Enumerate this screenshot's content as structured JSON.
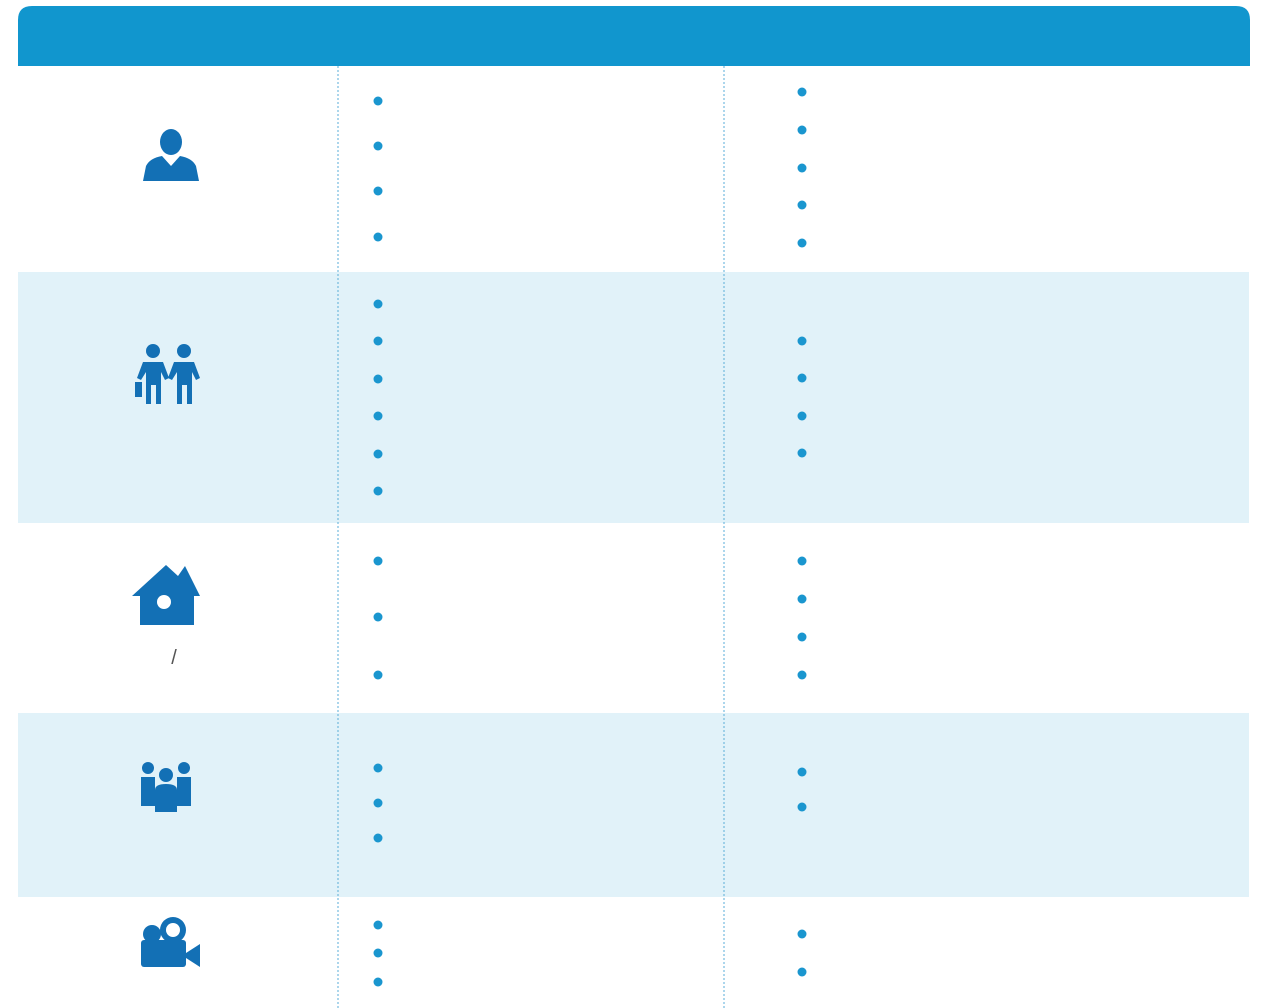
{
  "house_row": {
    "caption": "/"
  }
}
